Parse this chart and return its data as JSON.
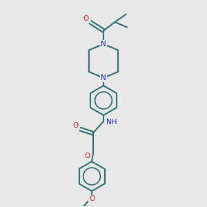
{
  "background_color": "#e8e8e8",
  "bond_color": "#2d6e6e",
  "nitrogen_color": "#1a1acc",
  "oxygen_color": "#cc1a1a",
  "line_width": 1.5,
  "figsize": [
    3.0,
    3.0
  ],
  "dpi": 100,
  "xlim": [
    0,
    10
  ],
  "ylim": [
    0,
    10
  ]
}
